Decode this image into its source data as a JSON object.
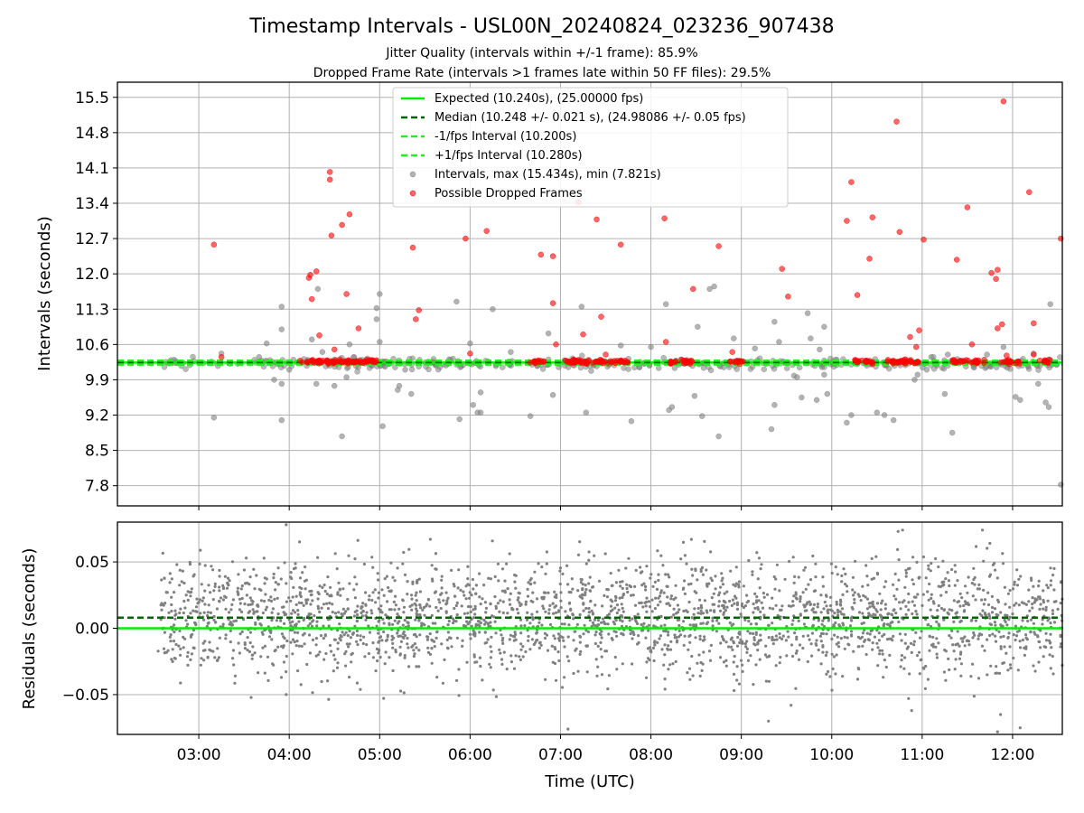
{
  "chart_data": [
    {
      "type": "scatter",
      "panel": "top",
      "title": "Timestamp Intervals - USL00N_20240824_023236_907438",
      "subtitle_lines": [
        "Jitter Quality (intervals within +/-1 frame): 85.9%",
        "Dropped Frame Rate (intervals >1 frames late within 50 FF files): 29.5%"
      ],
      "ylabel": "Intervals (seconds)",
      "ylim": [
        7.4,
        15.8
      ],
      "xlim": [
        "02:06",
        "12:33"
      ],
      "yticks": [
        "7.8",
        "8.5",
        "9.2",
        "9.9",
        "10.6",
        "11.3",
        "12.0",
        "12.7",
        "13.4",
        "14.1",
        "14.8",
        "15.5"
      ],
      "grid": true,
      "legend_position": "top-center",
      "reference_lines": [
        {
          "name": "Expected (10.240s), (25.00000 fps)",
          "y": 10.24,
          "style": "solid",
          "color": "#00ee00"
        },
        {
          "name": "Median (10.248 +/- 0.021 s), (24.98086 +/- 0.05 fps)",
          "y": 10.248,
          "style": "dashed",
          "color": "#006400"
        },
        {
          "name": "-1/fps Interval (10.200s)",
          "y": 10.2,
          "style": "dashed",
          "color": "#22ee22"
        },
        {
          "name": "+1/fps Interval (10.280s)",
          "y": 10.28,
          "style": "dashed",
          "color": "#22ee22"
        }
      ],
      "series": [
        {
          "name": "Intervals, max (15.434s), min (7.821s)",
          "color": "#808080",
          "points": [
            [
              "03:10",
              9.15
            ],
            [
              "03:15",
              10.42
            ],
            [
              "03:40",
              10.35
            ],
            [
              "03:45",
              10.62
            ],
            [
              "03:50",
              9.9
            ],
            [
              "03:55",
              9.82
            ],
            [
              "03:55",
              11.35
            ],
            [
              "03:55",
              10.9
            ],
            [
              "03:55",
              9.1
            ],
            [
              "04:00",
              10.1
            ],
            [
              "04:15",
              10.7
            ],
            [
              "04:18",
              9.82
            ],
            [
              "04:19",
              11.7
            ],
            [
              "04:22",
              10.45
            ],
            [
              "04:30",
              10.3
            ],
            [
              "04:30",
              9.78
            ],
            [
              "04:35",
              8.78
            ],
            [
              "04:38",
              9.95
            ],
            [
              "04:40",
              10.6
            ],
            [
              "04:58",
              11.1
            ],
            [
              "04:58",
              11.32
            ],
            [
              "05:00",
              11.6
            ],
            [
              "05:00",
              10.65
            ],
            [
              "05:02",
              8.98
            ],
            [
              "05:12",
              9.7
            ],
            [
              "05:13",
              9.78
            ],
            [
              "05:17",
              10.1
            ],
            [
              "05:21",
              9.62
            ],
            [
              "05:47",
              10.3
            ],
            [
              "05:51",
              11.45
            ],
            [
              "05:53",
              9.12
            ],
            [
              "06:00",
              10.62
            ],
            [
              "06:02",
              9.4
            ],
            [
              "06:05",
              9.25
            ],
            [
              "06:07",
              9.25
            ],
            [
              "06:07",
              9.65
            ],
            [
              "06:15",
              11.3
            ],
            [
              "06:27",
              10.45
            ],
            [
              "06:40",
              9.18
            ],
            [
              "06:52",
              10.82
            ],
            [
              "06:55",
              9.6
            ],
            [
              "07:14",
              11.35
            ],
            [
              "07:17",
              9.25
            ],
            [
              "07:40",
              10.58
            ],
            [
              "07:47",
              9.08
            ],
            [
              "08:00",
              10.55
            ],
            [
              "08:10",
              11.4
            ],
            [
              "08:12",
              9.3
            ],
            [
              "08:14",
              9.36
            ],
            [
              "08:29",
              9.58
            ],
            [
              "08:31",
              10.95
            ],
            [
              "08:34",
              9.18
            ],
            [
              "08:39",
              11.7
            ],
            [
              "08:42",
              11.75
            ],
            [
              "08:45",
              8.78
            ],
            [
              "08:55",
              10.72
            ],
            [
              "09:09",
              10.52
            ],
            [
              "09:20",
              8.92
            ],
            [
              "09:22",
              11.05
            ],
            [
              "09:22",
              9.4
            ],
            [
              "09:25",
              10.65
            ],
            [
              "09:35",
              9.98
            ],
            [
              "09:37",
              9.95
            ],
            [
              "09:40",
              9.55
            ],
            [
              "09:44",
              11.22
            ],
            [
              "09:46",
              10.72
            ],
            [
              "09:50",
              9.5
            ],
            [
              "09:52",
              10.5
            ],
            [
              "09:55",
              10.95
            ],
            [
              "09:55",
              10.0
            ],
            [
              "09:57",
              9.62
            ],
            [
              "10:10",
              9.05
            ],
            [
              "10:13",
              9.2
            ],
            [
              "10:30",
              9.25
            ],
            [
              "10:35",
              9.2
            ],
            [
              "10:41",
              9.1
            ],
            [
              "10:55",
              9.9
            ],
            [
              "10:57",
              10.0
            ],
            [
              "11:03",
              10.1
            ],
            [
              "11:06",
              10.35
            ],
            [
              "11:15",
              9.62
            ],
            [
              "11:17",
              10.4
            ],
            [
              "11:20",
              8.85
            ],
            [
              "11:43",
              10.4
            ],
            [
              "11:54",
              10.55
            ],
            [
              "12:02",
              9.56
            ],
            [
              "12:05",
              9.5
            ],
            [
              "12:14",
              10.42
            ],
            [
              "12:17",
              9.82
            ],
            [
              "12:22",
              9.45
            ],
            [
              "12:24",
              9.36
            ],
            [
              "12:25",
              11.4
            ],
            [
              "12:32",
              7.82
            ]
          ]
        },
        {
          "name": "Possible Dropped Frames",
          "color": "#ff0000",
          "points": [
            [
              "03:10",
              12.58
            ],
            [
              "03:15",
              10.35
            ],
            [
              "04:13",
              11.92
            ],
            [
              "04:14",
              11.98
            ],
            [
              "04:15",
              11.5
            ],
            [
              "04:18",
              12.05
            ],
            [
              "04:20",
              10.78
            ],
            [
              "04:27",
              14.02
            ],
            [
              "04:27",
              13.87
            ],
            [
              "04:28",
              12.76
            ],
            [
              "04:30",
              10.5
            ],
            [
              "04:35",
              12.97
            ],
            [
              "04:38",
              11.6
            ],
            [
              "04:40",
              13.18
            ],
            [
              "04:46",
              10.92
            ],
            [
              "05:22",
              12.52
            ],
            [
              "05:24",
              11.1
            ],
            [
              "05:26",
              11.28
            ],
            [
              "05:57",
              12.7
            ],
            [
              "06:00",
              10.42
            ],
            [
              "06:11",
              12.85
            ],
            [
              "06:47",
              12.38
            ],
            [
              "06:55",
              12.35
            ],
            [
              "06:55",
              11.42
            ],
            [
              "06:57",
              10.6
            ],
            [
              "07:12",
              13.42
            ],
            [
              "07:15",
              10.8
            ],
            [
              "07:24",
              13.08
            ],
            [
              "07:27",
              11.15
            ],
            [
              "07:30",
              10.4
            ],
            [
              "07:40",
              12.58
            ],
            [
              "08:09",
              13.1
            ],
            [
              "08:10",
              10.65
            ],
            [
              "08:28",
              11.7
            ],
            [
              "08:45",
              12.55
            ],
            [
              "08:54",
              10.45
            ],
            [
              "09:27",
              12.1
            ],
            [
              "09:31",
              11.55
            ],
            [
              "10:10",
              13.05
            ],
            [
              "10:13",
              13.82
            ],
            [
              "10:17",
              11.58
            ],
            [
              "10:25",
              12.3
            ],
            [
              "10:27",
              13.12
            ],
            [
              "10:43",
              15.02
            ],
            [
              "10:45",
              12.83
            ],
            [
              "10:52",
              10.75
            ],
            [
              "10:56",
              10.55
            ],
            [
              "10:58",
              10.88
            ],
            [
              "11:01",
              12.68
            ],
            [
              "11:23",
              12.28
            ],
            [
              "11:30",
              13.32
            ],
            [
              "11:33",
              10.6
            ],
            [
              "11:46",
              12.02
            ],
            [
              "11:49",
              11.9
            ],
            [
              "11:50",
              12.08
            ],
            [
              "11:50",
              10.92
            ],
            [
              "11:53",
              11.0
            ],
            [
              "11:54",
              15.42
            ],
            [
              "11:56",
              10.38
            ],
            [
              "12:11",
              13.62
            ],
            [
              "12:14",
              11.02
            ],
            [
              "12:14",
              10.4
            ],
            [
              "12:32",
              12.7
            ]
          ]
        }
      ],
      "dense_clusters": [
        {
          "series": "Intervals, max (15.434s), min (7.821s)",
          "x_range": [
            "02:33",
            "12:33"
          ],
          "y_center": 10.22,
          "y_spread": 0.12,
          "count": 380
        },
        {
          "series": "Possible Dropped Frames",
          "x_range": [
            "04:07",
            "04:58"
          ],
          "y_center": 10.26,
          "y_spread": 0.04,
          "count": 80
        },
        {
          "series": "Possible Dropped Frames",
          "x_range": [
            "06:40",
            "06:50"
          ],
          "y_center": 10.26,
          "y_spread": 0.04,
          "count": 14
        },
        {
          "series": "Possible Dropped Frames",
          "x_range": [
            "07:03",
            "07:45"
          ],
          "y_center": 10.26,
          "y_spread": 0.04,
          "count": 60
        },
        {
          "series": "Possible Dropped Frames",
          "x_range": [
            "08:13",
            "08:28"
          ],
          "y_center": 10.26,
          "y_spread": 0.04,
          "count": 22
        },
        {
          "series": "Possible Dropped Frames",
          "x_range": [
            "08:52",
            "09:02"
          ],
          "y_center": 10.26,
          "y_spread": 0.04,
          "count": 14
        },
        {
          "series": "Possible Dropped Frames",
          "x_range": [
            "10:15",
            "10:28"
          ],
          "y_center": 10.26,
          "y_spread": 0.04,
          "count": 18
        },
        {
          "series": "Possible Dropped Frames",
          "x_range": [
            "10:36",
            "10:58"
          ],
          "y_center": 10.26,
          "y_spread": 0.04,
          "count": 34
        },
        {
          "series": "Possible Dropped Frames",
          "x_range": [
            "11:20",
            "11:42"
          ],
          "y_center": 10.26,
          "y_spread": 0.04,
          "count": 30
        },
        {
          "series": "Possible Dropped Frames",
          "x_range": [
            "11:52",
            "12:05"
          ],
          "y_center": 10.26,
          "y_spread": 0.04,
          "count": 18
        },
        {
          "series": "Possible Dropped Frames",
          "x_range": [
            "12:18",
            "12:25"
          ],
          "y_center": 10.26,
          "y_spread": 0.04,
          "count": 10
        }
      ]
    },
    {
      "type": "scatter",
      "panel": "bottom",
      "xlabel": "Time (UTC)",
      "ylabel": "Residuals (seconds)",
      "ylim": [
        -0.08,
        0.08
      ],
      "xlim": [
        "02:06",
        "12:33"
      ],
      "yticks": [
        "−0.05",
        "0.00",
        "0.05"
      ],
      "xticks": [
        "03:00",
        "04:00",
        "05:00",
        "06:00",
        "07:00",
        "08:00",
        "09:00",
        "10:00",
        "11:00",
        "12:00"
      ],
      "grid": true,
      "reference_lines": [
        {
          "y": 0.0,
          "style": "solid",
          "color": "#00ee00"
        },
        {
          "y": 0.008,
          "style": "dashed",
          "color": "#006400"
        }
      ],
      "series": [
        {
          "color": "#808080",
          "x_range": [
            "02:33",
            "12:33"
          ],
          "y_center": 0.008,
          "y_spread": 0.021,
          "count": 2600,
          "outliers": [
            [
              "03:58",
              0.078
            ],
            [
              "03:58",
              -0.05
            ],
            [
              "07:05",
              -0.076
            ],
            [
              "09:18",
              -0.07
            ],
            [
              "09:33",
              -0.058
            ],
            [
              "10:44",
              0.073
            ],
            [
              "10:47",
              0.074
            ],
            [
              "10:51",
              -0.053
            ],
            [
              "10:53",
              -0.062
            ],
            [
              "11:40",
              0.074
            ],
            [
              "11:50",
              -0.078
            ],
            [
              "11:52",
              -0.065
            ],
            [
              "12:05",
              -0.075
            ]
          ]
        }
      ]
    }
  ],
  "colors": {
    "interval_gray": "#808080",
    "dropped_red": "#ff0000",
    "expected_green": "#00ee00",
    "median_dark_green": "#006400",
    "grid": "#b0b0b0"
  }
}
